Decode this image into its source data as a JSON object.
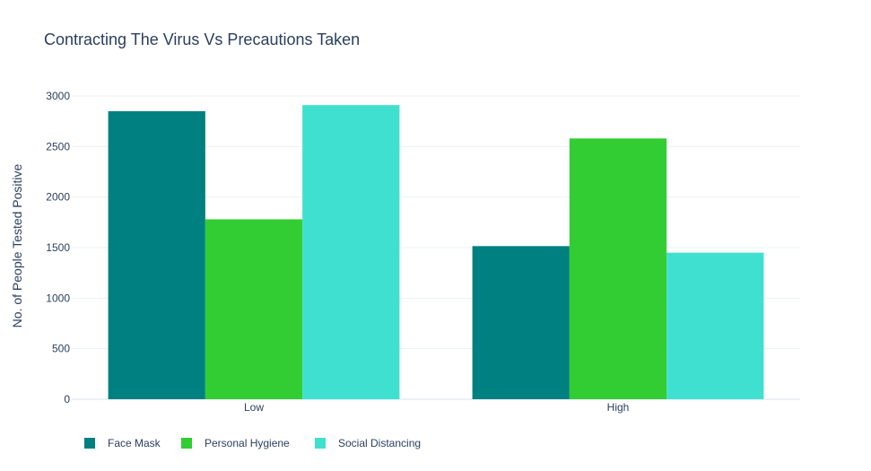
{
  "chart_data": {
    "type": "bar",
    "title": "Contracting The Virus Vs Precautions Taken",
    "xlabel": "",
    "ylabel": "No. of People Tested Positive",
    "categories": [
      "Low",
      "High"
    ],
    "ylim": [
      0,
      3000
    ],
    "yticks": [
      0,
      500,
      1000,
      1500,
      2000,
      2500,
      3000
    ],
    "grid": true,
    "legend_position": "bottom-left",
    "series": [
      {
        "name": "Face Mask",
        "color": "#008080",
        "values": [
          2850,
          1515
        ]
      },
      {
        "name": "Personal Hygiene",
        "color": "#32cd32",
        "values": [
          1780,
          2580
        ]
      },
      {
        "name": "Social Distancing",
        "color": "#40e0d0",
        "values": [
          2910,
          1450
        ]
      }
    ]
  }
}
